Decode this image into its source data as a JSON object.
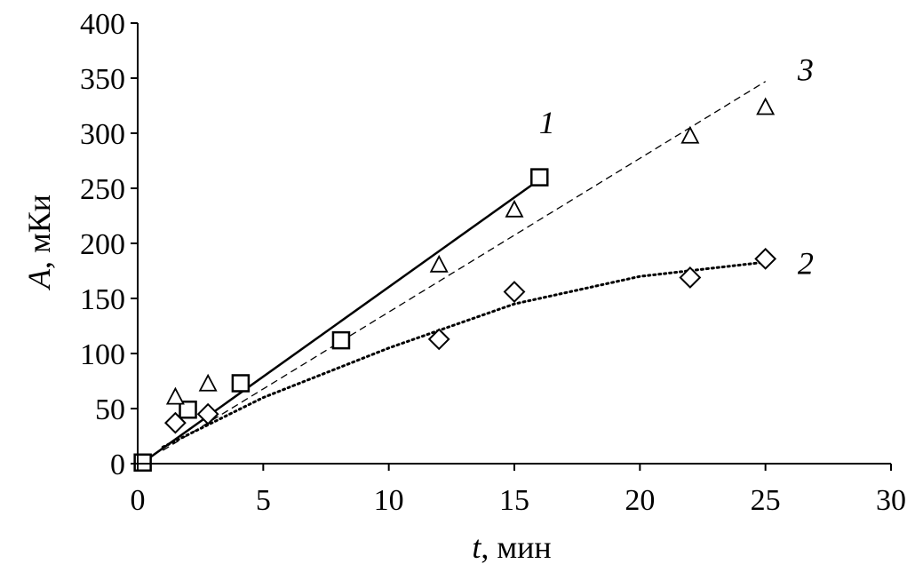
{
  "chart_data": {
    "type": "scatter",
    "title": "",
    "xlabel": {
      "var": "t",
      "rest": ", мин"
    },
    "ylabel": {
      "var": "A",
      "rest": ", мКи"
    },
    "xlim": [
      0,
      30
    ],
    "ylim": [
      0,
      400
    ],
    "x_ticks": [
      0,
      5,
      10,
      15,
      20,
      25,
      30
    ],
    "y_ticks": [
      0,
      50,
      100,
      150,
      200,
      250,
      300,
      350,
      400
    ],
    "grid": false,
    "legend": "none",
    "series": [
      {
        "label": "1",
        "marker": "square",
        "points": [
          [
            0.2,
            1
          ],
          [
            2,
            49
          ],
          [
            4.1,
            73
          ],
          [
            8.1,
            112
          ],
          [
            16,
            260
          ]
        ],
        "trend": {
          "style": "solid",
          "points": [
            [
              0.2,
              1
            ],
            [
              16,
              258
            ]
          ]
        }
      },
      {
        "label": "2",
        "marker": "diamond",
        "points": [
          [
            1.5,
            37
          ],
          [
            2.8,
            45
          ],
          [
            12,
            113
          ],
          [
            15,
            156
          ],
          [
            22,
            169
          ],
          [
            25,
            186
          ]
        ],
        "trend": {
          "style": "dotted",
          "points": [
            [
              1,
              15
            ],
            [
              5,
              60
            ],
            [
              10,
              105
            ],
            [
              15,
              145
            ],
            [
              20,
              170
            ],
            [
              25,
              183
            ]
          ]
        }
      },
      {
        "label": "3",
        "marker": "triangle",
        "points": [
          [
            1.5,
            60
          ],
          [
            2.8,
            72
          ],
          [
            12,
            180
          ],
          [
            15,
            230
          ],
          [
            22,
            297
          ],
          [
            25,
            323
          ]
        ],
        "trend": {
          "style": "dashed",
          "points": [
            [
              1,
              12
            ],
            [
              25,
              347
            ]
          ]
        }
      }
    ],
    "series_label_positions": [
      {
        "label": "1",
        "x": 16.3,
        "y": 300
      },
      {
        "label": "2",
        "x": 26.6,
        "y": 172
      },
      {
        "label": "3",
        "x": 26.6,
        "y": 348
      }
    ]
  }
}
